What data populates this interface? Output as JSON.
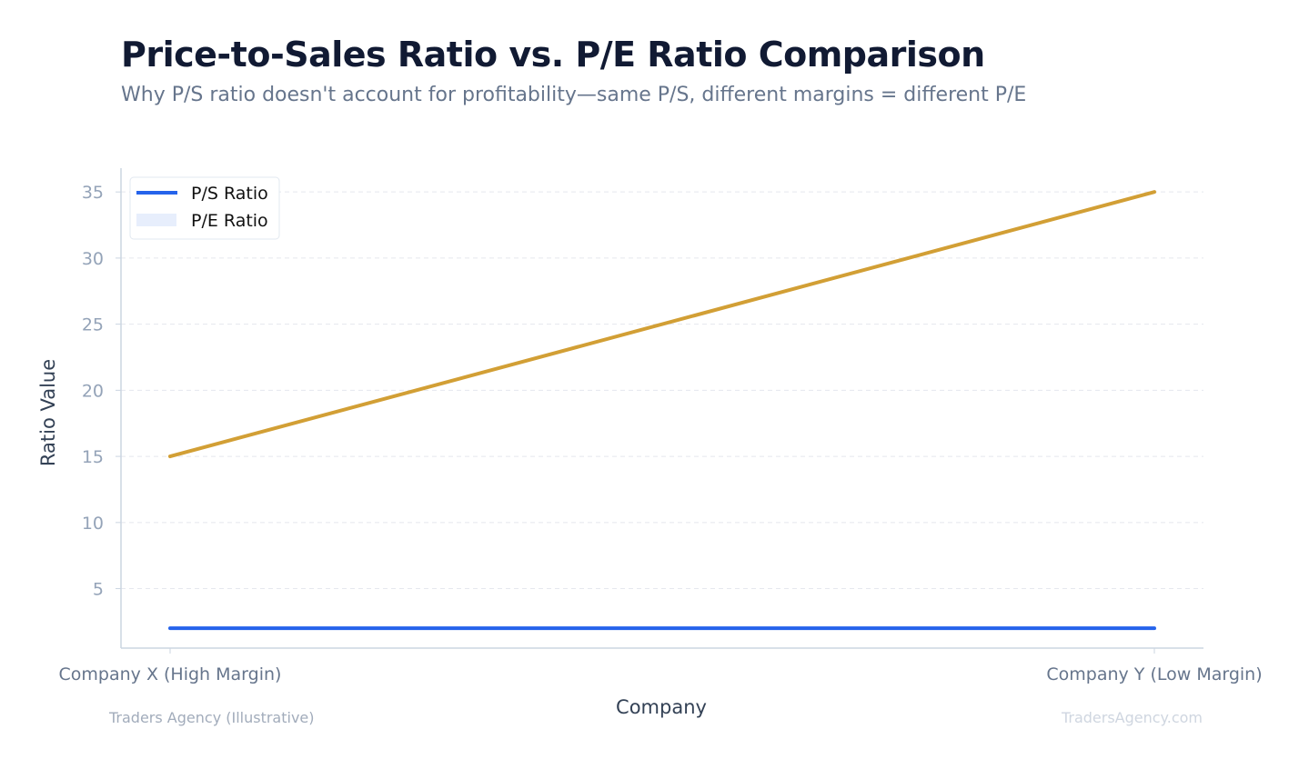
{
  "header": {
    "title": "Price-to-Sales Ratio vs. P/E Ratio Comparison",
    "subtitle": "Why P/S ratio doesn't account for profitability—same P/S, different margins = different P/E"
  },
  "footer": {
    "source": "Traders Agency (Illustrative)",
    "brand": "TradersAgency.com"
  },
  "colors": {
    "ps": "#2563eb",
    "pe": "#d29f35",
    "pe_legend_fill": "#e7eefc",
    "grid": "#e5e8ee",
    "axis": "#cbd5e1",
    "tick_label": "#94a3b8",
    "axis_label": "#334155"
  },
  "chart_data": {
    "type": "line",
    "title": "Price-to-Sales Ratio vs. P/E Ratio Comparison",
    "subtitle": "Why P/S ratio doesn't account for profitability—same P/S, different margins = different P/E",
    "categories": [
      "Company X (High Margin)",
      "Company Y (Low Margin)"
    ],
    "series": [
      {
        "name": "P/S Ratio",
        "values": [
          2,
          2
        ],
        "color": "#2563eb"
      },
      {
        "name": "P/E Ratio",
        "values": [
          15,
          35
        ],
        "color": "#d29f35"
      }
    ],
    "xlabel": "Company",
    "ylabel": "Ratio Value",
    "yticks": [
      5,
      10,
      15,
      20,
      25,
      30,
      35
    ],
    "ylim": [
      0.5,
      36.8
    ],
    "grid": true,
    "legend": "top-left"
  }
}
